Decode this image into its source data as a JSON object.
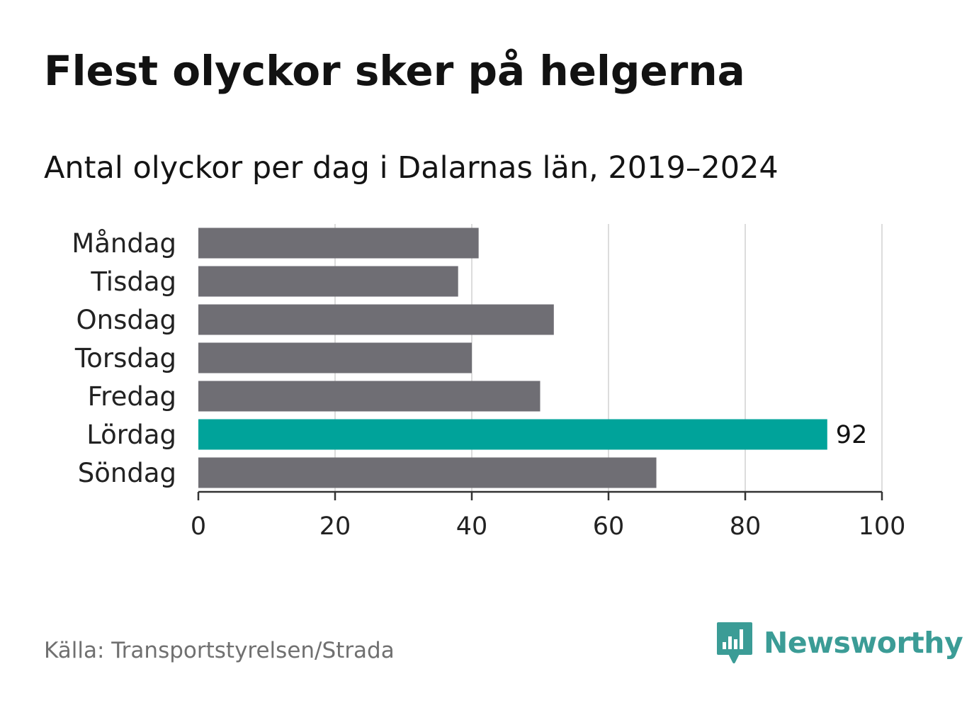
{
  "header": {
    "title": "Flest olyckor sker på helgerna",
    "subtitle": "Antal olyckor per dag i Dalarnas län, 2019–2024"
  },
  "footer": {
    "source": "Källa: Transportstyrelsen/Strada",
    "brand": "Newsworthy"
  },
  "colors": {
    "bar": "#6f6e74",
    "highlight": "#00a39a",
    "grid": "#dcdcdc",
    "axis": "#333333",
    "brand": "#3b9c96"
  },
  "chart_data": {
    "type": "bar",
    "orientation": "horizontal",
    "categories": [
      "Måndag",
      "Tisdag",
      "Onsdag",
      "Torsdag",
      "Fredag",
      "Lördag",
      "Söndag"
    ],
    "values": [
      41,
      38,
      52,
      40,
      50,
      92,
      67
    ],
    "highlight_index": 5,
    "data_labels": [
      {
        "index": 5,
        "text": "92"
      }
    ],
    "xlim": [
      0,
      100
    ],
    "xticks": [
      0,
      20,
      40,
      60,
      80,
      100
    ],
    "grid": true
  }
}
